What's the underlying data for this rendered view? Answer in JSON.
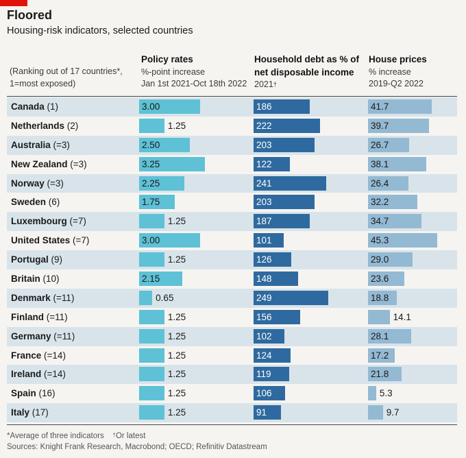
{
  "header": {
    "title": "Floored",
    "subtitle": "Housing-risk indicators, selected countries",
    "rank_note_line1": "(Ranking out of 17 countries*,",
    "rank_note_line2": "1=most exposed)"
  },
  "columns": {
    "policy": {
      "title": "Policy rates",
      "line2": "%-point increase",
      "line3": "Jan 1st 2021-Oct 18th 2022"
    },
    "debt": {
      "title_line1": "Household debt as % of",
      "title_line2": "net disposable income",
      "line3": "2021",
      "line3_sup": "†"
    },
    "house": {
      "title": "House prices",
      "line2": "% increase",
      "line3": "2019-Q2 2022"
    }
  },
  "footer": {
    "note": "*Average of three indicators",
    "note2_sup": "†",
    "note2": "Or latest",
    "sources": "Sources: Knight Frank Research, Macrobond; OECD; Refinitiv Datastream"
  },
  "colors": {
    "policy": "#5ec1d6",
    "debt": "#2e6a9f",
    "house": "#94b9d3",
    "row_band": "#d8e4ea",
    "accent": "#e3120b"
  },
  "chart_data": {
    "type": "table",
    "columns": [
      "Policy rates",
      "Household debt as % of net disposable income",
      "House prices"
    ],
    "rows": [
      {
        "country": "Canada",
        "rank": "(1)",
        "policy": "3.00",
        "debt": "186",
        "house": "41.7"
      },
      {
        "country": "Netherlands",
        "rank": "(2)",
        "policy": "1.25",
        "debt": "222",
        "house": "39.7"
      },
      {
        "country": "Australia",
        "rank": "(=3)",
        "policy": "2.50",
        "debt": "203",
        "house": "26.7"
      },
      {
        "country": "New Zealand",
        "rank": "(=3)",
        "policy": "3.25",
        "debt": "122",
        "house": "38.1"
      },
      {
        "country": "Norway",
        "rank": "(=3)",
        "policy": "2.25",
        "debt": "241",
        "house": "26.4"
      },
      {
        "country": "Sweden",
        "rank": "(6)",
        "policy": "1.75",
        "debt": "203",
        "house": "32.2"
      },
      {
        "country": "Luxembourg",
        "rank": "(=7)",
        "policy": "1.25",
        "debt": "187",
        "house": "34.7"
      },
      {
        "country": "United States",
        "rank": "(=7)",
        "policy": "3.00",
        "debt": "101",
        "house": "45.3"
      },
      {
        "country": "Portugal",
        "rank": "(9)",
        "policy": "1.25",
        "debt": "126",
        "house": "29.0"
      },
      {
        "country": "Britain",
        "rank": "(10)",
        "policy": "2.15",
        "debt": "148",
        "house": "23.6"
      },
      {
        "country": "Denmark",
        "rank": "(=11)",
        "policy": "0.65",
        "debt": "249",
        "house": "18.8"
      },
      {
        "country": "Finland",
        "rank": "(=11)",
        "policy": "1.25",
        "debt": "156",
        "house": "14.1"
      },
      {
        "country": "Germany",
        "rank": "(=11)",
        "policy": "1.25",
        "debt": "102",
        "house": "28.1"
      },
      {
        "country": "France",
        "rank": "(=14)",
        "policy": "1.25",
        "debt": "124",
        "house": "17.2"
      },
      {
        "country": "Ireland",
        "rank": "(=14)",
        "policy": "1.25",
        "debt": "119",
        "house": "21.8"
      },
      {
        "country": "Spain",
        "rank": "(16)",
        "policy": "1.25",
        "debt": "106",
        "house": "5.3"
      },
      {
        "country": "Italy",
        "rank": "(17)",
        "policy": "1.25",
        "debt": "91",
        "house": "9.7"
      }
    ]
  }
}
